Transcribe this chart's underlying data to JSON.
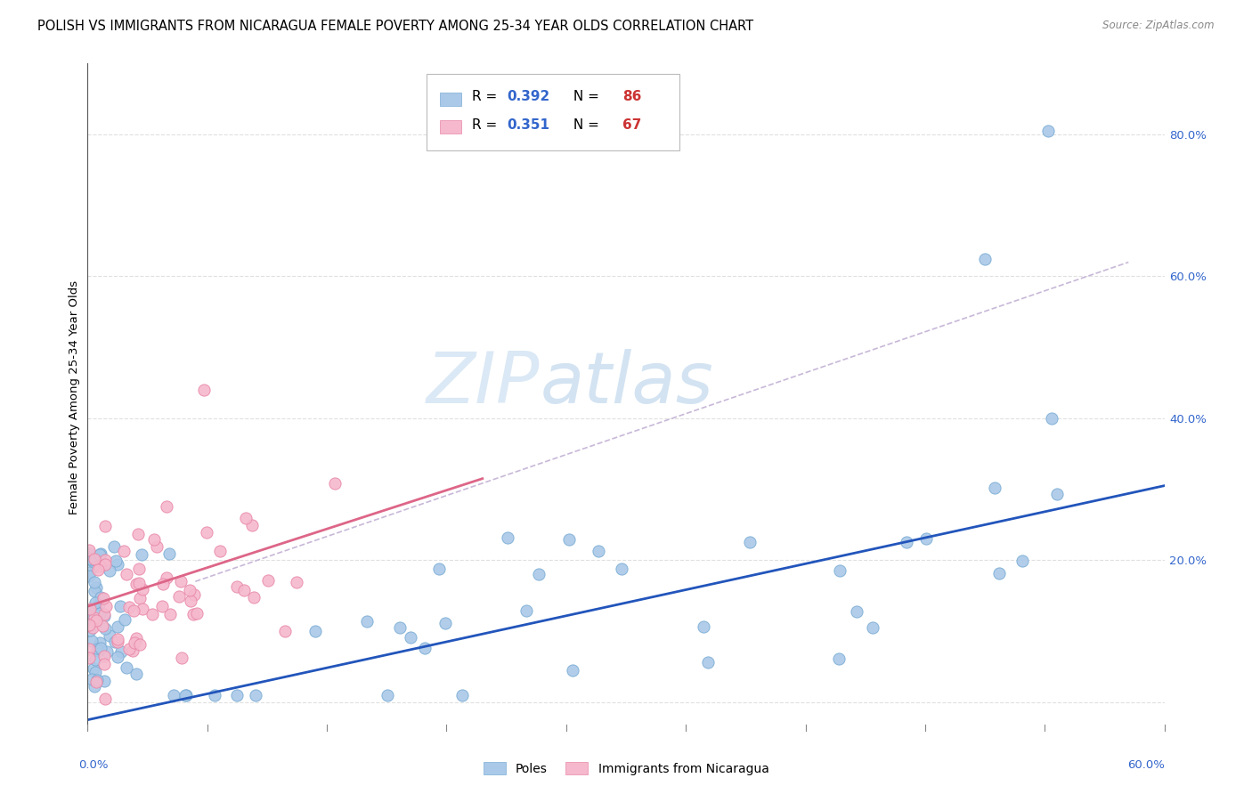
{
  "title": "POLISH VS IMMIGRANTS FROM NICARAGUA FEMALE POVERTY AMONG 25-34 YEAR OLDS CORRELATION CHART",
  "source": "Source: ZipAtlas.com",
  "ylabel": "Female Poverty Among 25-34 Year Olds",
  "yticks": [
    0.0,
    0.2,
    0.4,
    0.6,
    0.8
  ],
  "ytick_labels": [
    "",
    "20.0%",
    "40.0%",
    "60.0%",
    "80.0%"
  ],
  "xlim": [
    0.0,
    0.6
  ],
  "ylim": [
    -0.04,
    0.9
  ],
  "watermark_zip": "ZIP",
  "watermark_atlas": "atlas",
  "poles_color": "#aac8e8",
  "poles_edge_color": "#7aadd4",
  "nicaragua_color": "#f5b8cc",
  "nicaragua_edge_color": "#e888a8",
  "poles_line_color": "#2255bb",
  "poles_line_intercept": -0.025,
  "poles_line_slope": 0.55,
  "nicaragua_line_color": "#dd6688",
  "nicaragua_line_x0": 0.0,
  "nicaragua_line_x1": 0.22,
  "nicaragua_line_y0": 0.135,
  "nicaragua_line_y1": 0.315,
  "dashed_line_color": "#c8b8d8",
  "dashed_line_x0": 0.06,
  "dashed_line_x1": 0.58,
  "dashed_line_y0": 0.17,
  "dashed_line_y1": 0.62,
  "grid_color": "#dddddd",
  "title_fontsize": 10.5,
  "ylabel_fontsize": 9.5,
  "tick_fontsize": 9.5,
  "legend_fontsize": 11
}
